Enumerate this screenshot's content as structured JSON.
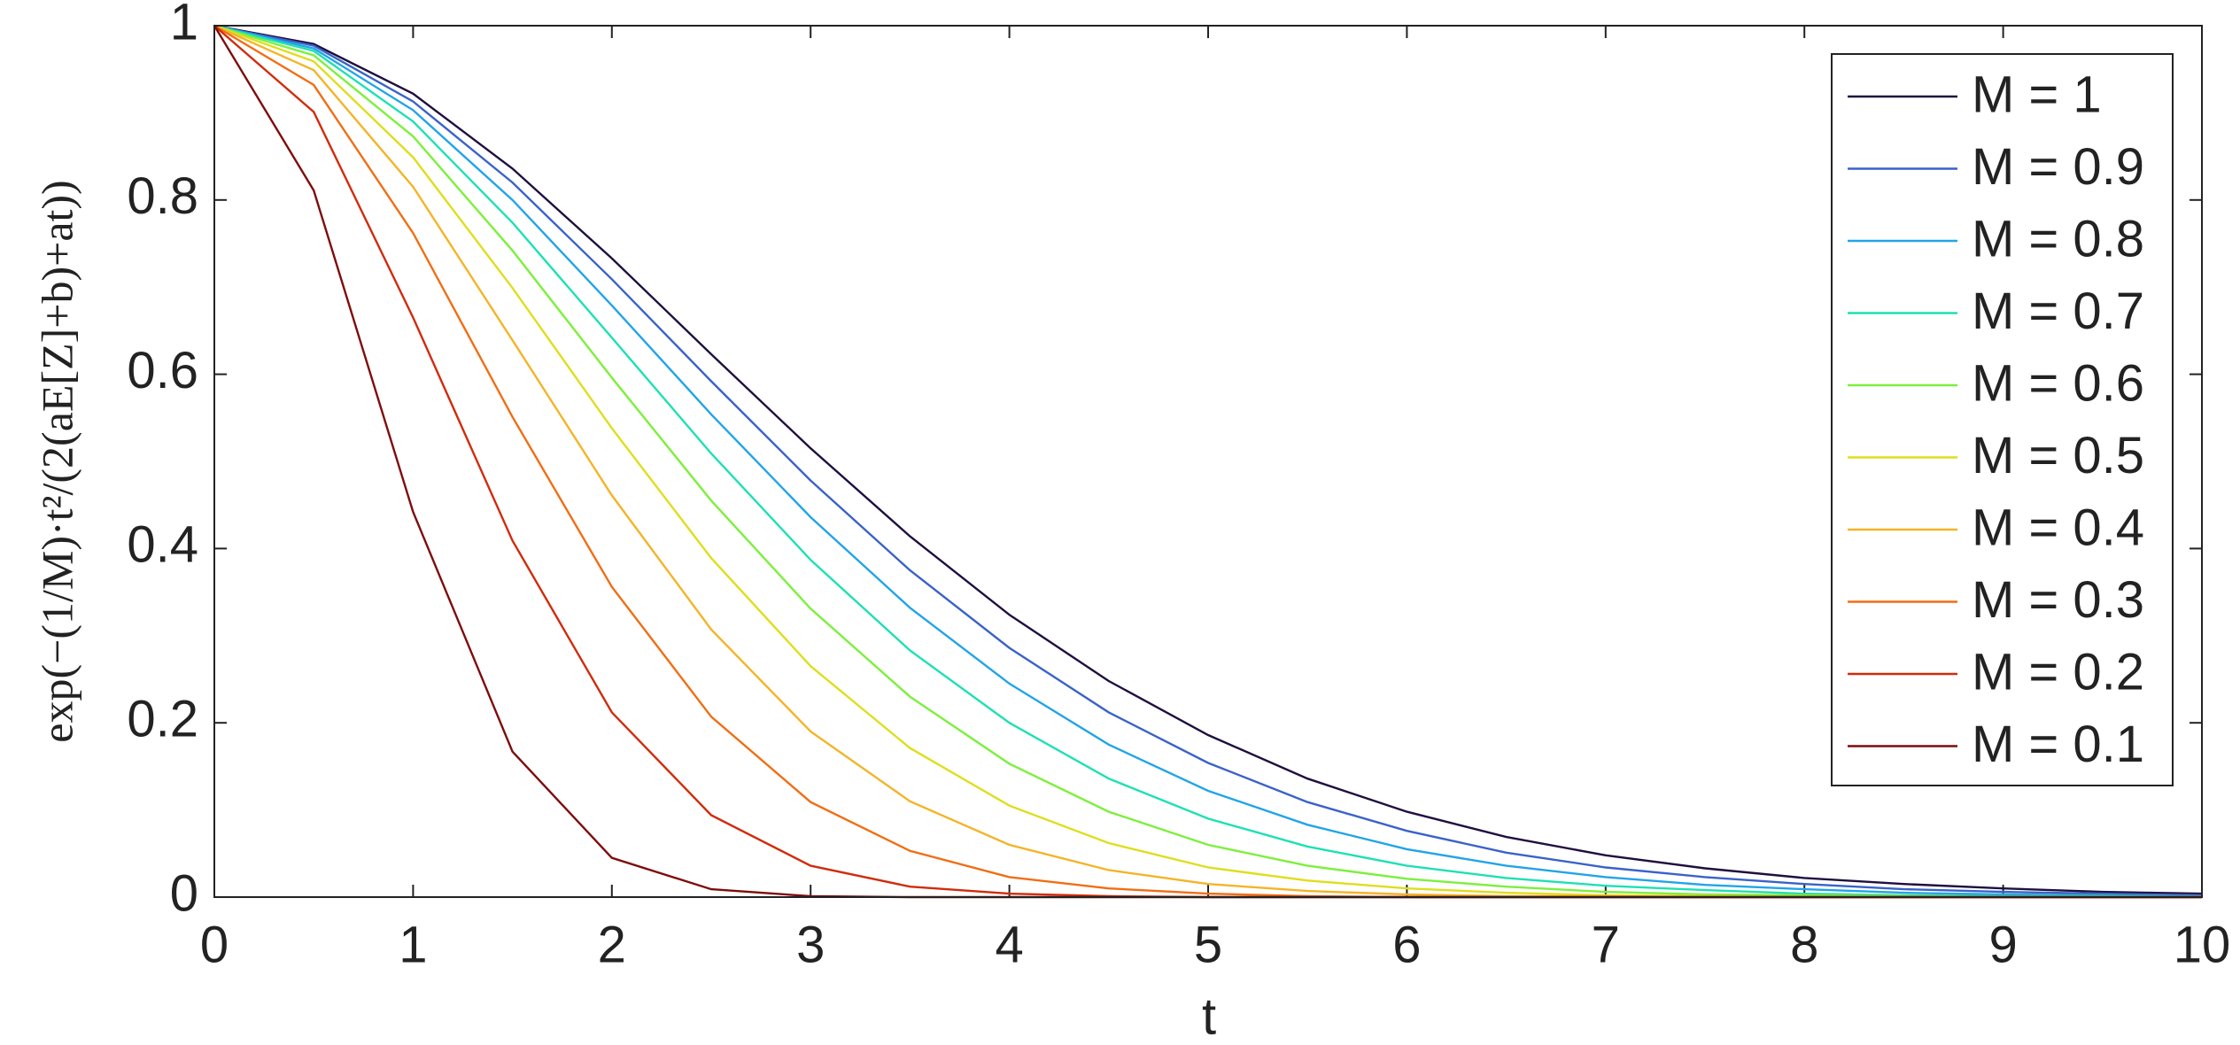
{
  "chart_data": {
    "type": "line",
    "xlabel": "t",
    "ylabel": "exp(−(1/M)·t²/(2(aE[Z]+b)+at))",
    "x": [
      0,
      0.5,
      1,
      1.5,
      2,
      2.5,
      3,
      3.5,
      4,
      4.5,
      5,
      5.5,
      6,
      6.5,
      7,
      7.5,
      8,
      8.5,
      9,
      9.5,
      10
    ],
    "xlim": [
      0,
      10
    ],
    "xticks": [
      0,
      1,
      2,
      3,
      4,
      5,
      6,
      7,
      8,
      9,
      10
    ],
    "ylim": [
      0,
      1
    ],
    "yticks": [
      0,
      0.2,
      0.4,
      0.6,
      0.8,
      1
    ],
    "grid": false,
    "legend": "upper right",
    "series": [
      {
        "name": "M = 1",
        "color": "#1f0f3f",
        "values": [
          1,
          0.979,
          0.922,
          0.836,
          0.733,
          0.623,
          0.515,
          0.414,
          0.324,
          0.248,
          0.186,
          0.136,
          0.098,
          0.069,
          0.048,
          0.033,
          0.022,
          0.015,
          0.01,
          0.006,
          0.004
        ]
      },
      {
        "name": "M = 0.9",
        "color": "#3a62c8",
        "values": [
          1,
          0.977,
          0.913,
          0.82,
          0.709,
          0.592,
          0.478,
          0.375,
          0.286,
          0.212,
          0.154,
          0.109,
          0.076,
          0.051,
          0.034,
          0.023,
          0.015,
          0.009,
          0.006,
          0.004,
          0.002
        ]
      },
      {
        "name": "M = 0.8",
        "color": "#22a4e8",
        "values": [
          1,
          0.974,
          0.903,
          0.8,
          0.679,
          0.554,
          0.436,
          0.332,
          0.245,
          0.175,
          0.122,
          0.083,
          0.055,
          0.036,
          0.023,
          0.014,
          0.009,
          0.005,
          0.003,
          0.002,
          0.001
        ]
      },
      {
        "name": "M = 0.7",
        "color": "#1ee0b4",
        "values": [
          1,
          0.971,
          0.89,
          0.774,
          0.642,
          0.509,
          0.387,
          0.283,
          0.2,
          0.136,
          0.09,
          0.058,
          0.036,
          0.022,
          0.013,
          0.008,
          0.004,
          0.002,
          0.001,
          0.001,
          0
        ]
      },
      {
        "name": "M = 0.6",
        "color": "#7cf03c",
        "values": [
          1,
          0.966,
          0.873,
          0.742,
          0.596,
          0.455,
          0.331,
          0.23,
          0.153,
          0.098,
          0.06,
          0.036,
          0.021,
          0.012,
          0.006,
          0.003,
          0.002,
          0.001,
          0,
          0,
          0
        ]
      },
      {
        "name": "M = 0.5",
        "color": "#dede1e",
        "values": [
          1,
          0.959,
          0.849,
          0.699,
          0.538,
          0.389,
          0.265,
          0.171,
          0.105,
          0.062,
          0.034,
          0.019,
          0.01,
          0.005,
          0.002,
          0.001,
          0,
          0,
          0,
          0,
          0
        ]
      },
      {
        "name": "M = 0.4",
        "color": "#f4b428",
        "values": [
          1,
          0.949,
          0.815,
          0.639,
          0.461,
          0.307,
          0.19,
          0.11,
          0.06,
          0.031,
          0.015,
          0.007,
          0.003,
          0.001,
          0.001,
          0,
          0,
          0,
          0,
          0,
          0
        ]
      },
      {
        "name": "M = 0.3",
        "color": "#f06e14",
        "values": [
          1,
          0.932,
          0.762,
          0.551,
          0.356,
          0.207,
          0.109,
          0.053,
          0.023,
          0.01,
          0.004,
          0.001,
          0,
          0,
          0,
          0,
          0,
          0,
          0,
          0,
          0
        ]
      },
      {
        "name": "M = 0.2",
        "color": "#d02c0c",
        "values": [
          1,
          0.901,
          0.665,
          0.409,
          0.212,
          0.094,
          0.036,
          0.012,
          0.004,
          0.001,
          0,
          0,
          0,
          0,
          0,
          0,
          0,
          0,
          0,
          0,
          0
        ]
      },
      {
        "name": "M = 0.1",
        "color": "#7e0c0c",
        "values": [
          1,
          0.811,
          0.442,
          0.167,
          0.045,
          0.009,
          0.001,
          0,
          0,
          0,
          0,
          0,
          0,
          0,
          0,
          0,
          0,
          0,
          0,
          0,
          0
        ]
      }
    ]
  }
}
